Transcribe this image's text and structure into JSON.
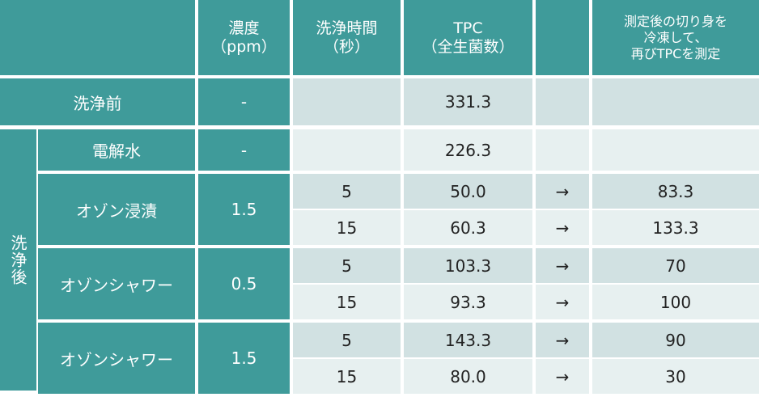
{
  "header": {
    "columns": [
      [
        "濃度",
        "（ppm）"
      ],
      [
        "洗浄時間",
        "（秒）"
      ],
      [
        "TPC",
        "（全生菌数）"
      ],
      [
        "測定後の切り身を",
        "冷凍して、",
        "再びTPCを測定"
      ]
    ]
  },
  "before": {
    "label": "洗浄前",
    "concentration": "-",
    "tpc": "331.3"
  },
  "after": {
    "label": "洗浄後",
    "groups": [
      {
        "label": "電解水",
        "concentration": "-",
        "rows": [
          {
            "tpc": "226.3"
          }
        ]
      },
      {
        "label": "オゾン浸漬",
        "concentration": "1.5",
        "rows": [
          {
            "time": "5",
            "tpc": "50.0",
            "arrow": "→",
            "frozen": "83.3"
          },
          {
            "time": "15",
            "tpc": "60.3",
            "arrow": "→",
            "frozen": "133.3"
          }
        ]
      },
      {
        "label": "オゾンシャワー",
        "concentration": "0.5",
        "rows": [
          {
            "time": "5",
            "tpc": "103.3",
            "arrow": "→",
            "frozen": "70"
          },
          {
            "time": "15",
            "tpc": "93.3",
            "arrow": "→",
            "frozen": "100"
          }
        ]
      },
      {
        "label": "オゾンシャワー",
        "concentration": "1.5",
        "rows": [
          {
            "time": "5",
            "tpc": "143.3",
            "arrow": "→",
            "frozen": "90"
          },
          {
            "time": "15",
            "tpc": "80.0",
            "arrow": "→",
            "frozen": "30"
          }
        ]
      }
    ]
  }
}
